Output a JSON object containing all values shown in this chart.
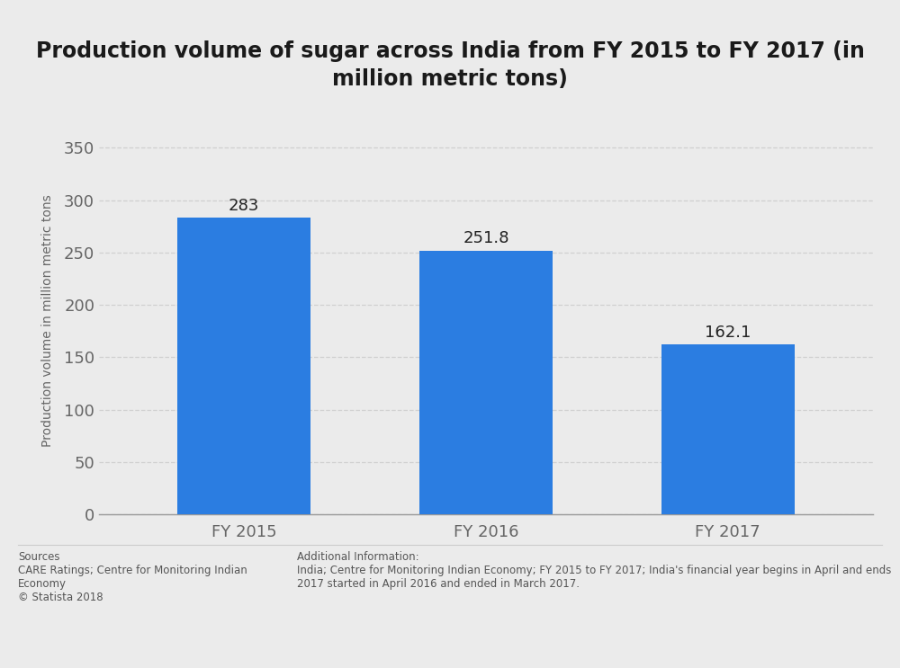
{
  "title": "Production volume of sugar across India from FY 2015 to FY 2017 (in\nmillion metric tons)",
  "categories": [
    "FY 2015",
    "FY 2016",
    "FY 2017"
  ],
  "values": [
    283,
    251.8,
    162.1
  ],
  "bar_color": "#2b7de1",
  "ylabel": "Production volume in million metric tons",
  "ylim": [
    0,
    370
  ],
  "yticks": [
    0,
    50,
    100,
    150,
    200,
    250,
    300,
    350
  ],
  "background_color": "#ebebeb",
  "plot_bg_color": "#ebebeb",
  "title_fontsize": 17,
  "label_fontsize": 10,
  "tick_fontsize": 13,
  "value_label_fontsize": 13,
  "sources_text": "Sources\nCARE Ratings; Centre for Monitoring Indian\nEconomy\n© Statista 2018",
  "additional_text": "Additional Information:\nIndia; Centre for Monitoring Indian Economy; FY 2015 to FY 2017; India's financial year begins in April and ends\n2017 started in April 2016 and ended in March 2017.",
  "grid_color": "#d0d0d0",
  "bar_width": 0.55,
  "text_color": "#666666",
  "value_text_color": "#222222",
  "title_color": "#1a1a1a"
}
